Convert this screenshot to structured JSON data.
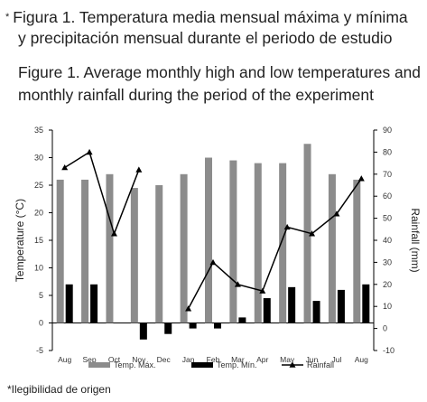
{
  "caption": {
    "es_marker": "*",
    "es_line1": "Figura 1. Temperatura media mensual máxima y mínima",
    "es_line2": "y precipitación mensual durante el periodo de estudio",
    "en_line1": "Figure 1. Average monthly high and low temperatures and",
    "en_line2": "monthly rainfall during the period of the experiment"
  },
  "footnote": "*Ilegibilidad de origen",
  "chart_data": {
    "type": "bar",
    "categories": [
      "Aug",
      "Sep",
      "Oct",
      "Nov",
      "Dec",
      "Jan",
      "Feb",
      "Mar",
      "Apr",
      "May",
      "Jun",
      "Jul",
      "Aug"
    ],
    "series": [
      {
        "name": "Temp. Máx.",
        "kind": "bar",
        "axis": "left",
        "color": "#8c8c8c",
        "values": [
          26,
          26,
          27,
          24.5,
          25,
          27,
          30,
          29.5,
          29,
          29,
          32.5,
          27,
          26
        ]
      },
      {
        "name": "Temp. Mín.",
        "kind": "bar",
        "axis": "left",
        "color": "#000000",
        "values": [
          7,
          7,
          null,
          -3,
          -2,
          -1,
          -1,
          1,
          4.5,
          6.5,
          4,
          6,
          7
        ]
      },
      {
        "name": "Rainfall",
        "kind": "line",
        "axis": "right",
        "color": "#000000",
        "marker": "triangle",
        "values": [
          73,
          80,
          43,
          72,
          null,
          9,
          30,
          20,
          17,
          46,
          43,
          52,
          68
        ]
      }
    ],
    "ylabel": "Temperature (°C)",
    "y2label": "Rainfall (mm)",
    "ylim": [
      -5,
      35
    ],
    "y2lim": [
      -10,
      90
    ],
    "yticks": [
      -5,
      0,
      5,
      10,
      15,
      20,
      25,
      30,
      35
    ],
    "y2ticks": [
      -10,
      0,
      10,
      20,
      30,
      40,
      50,
      60,
      70,
      80,
      90
    ],
    "grid": false,
    "legend_position": "bottom"
  }
}
